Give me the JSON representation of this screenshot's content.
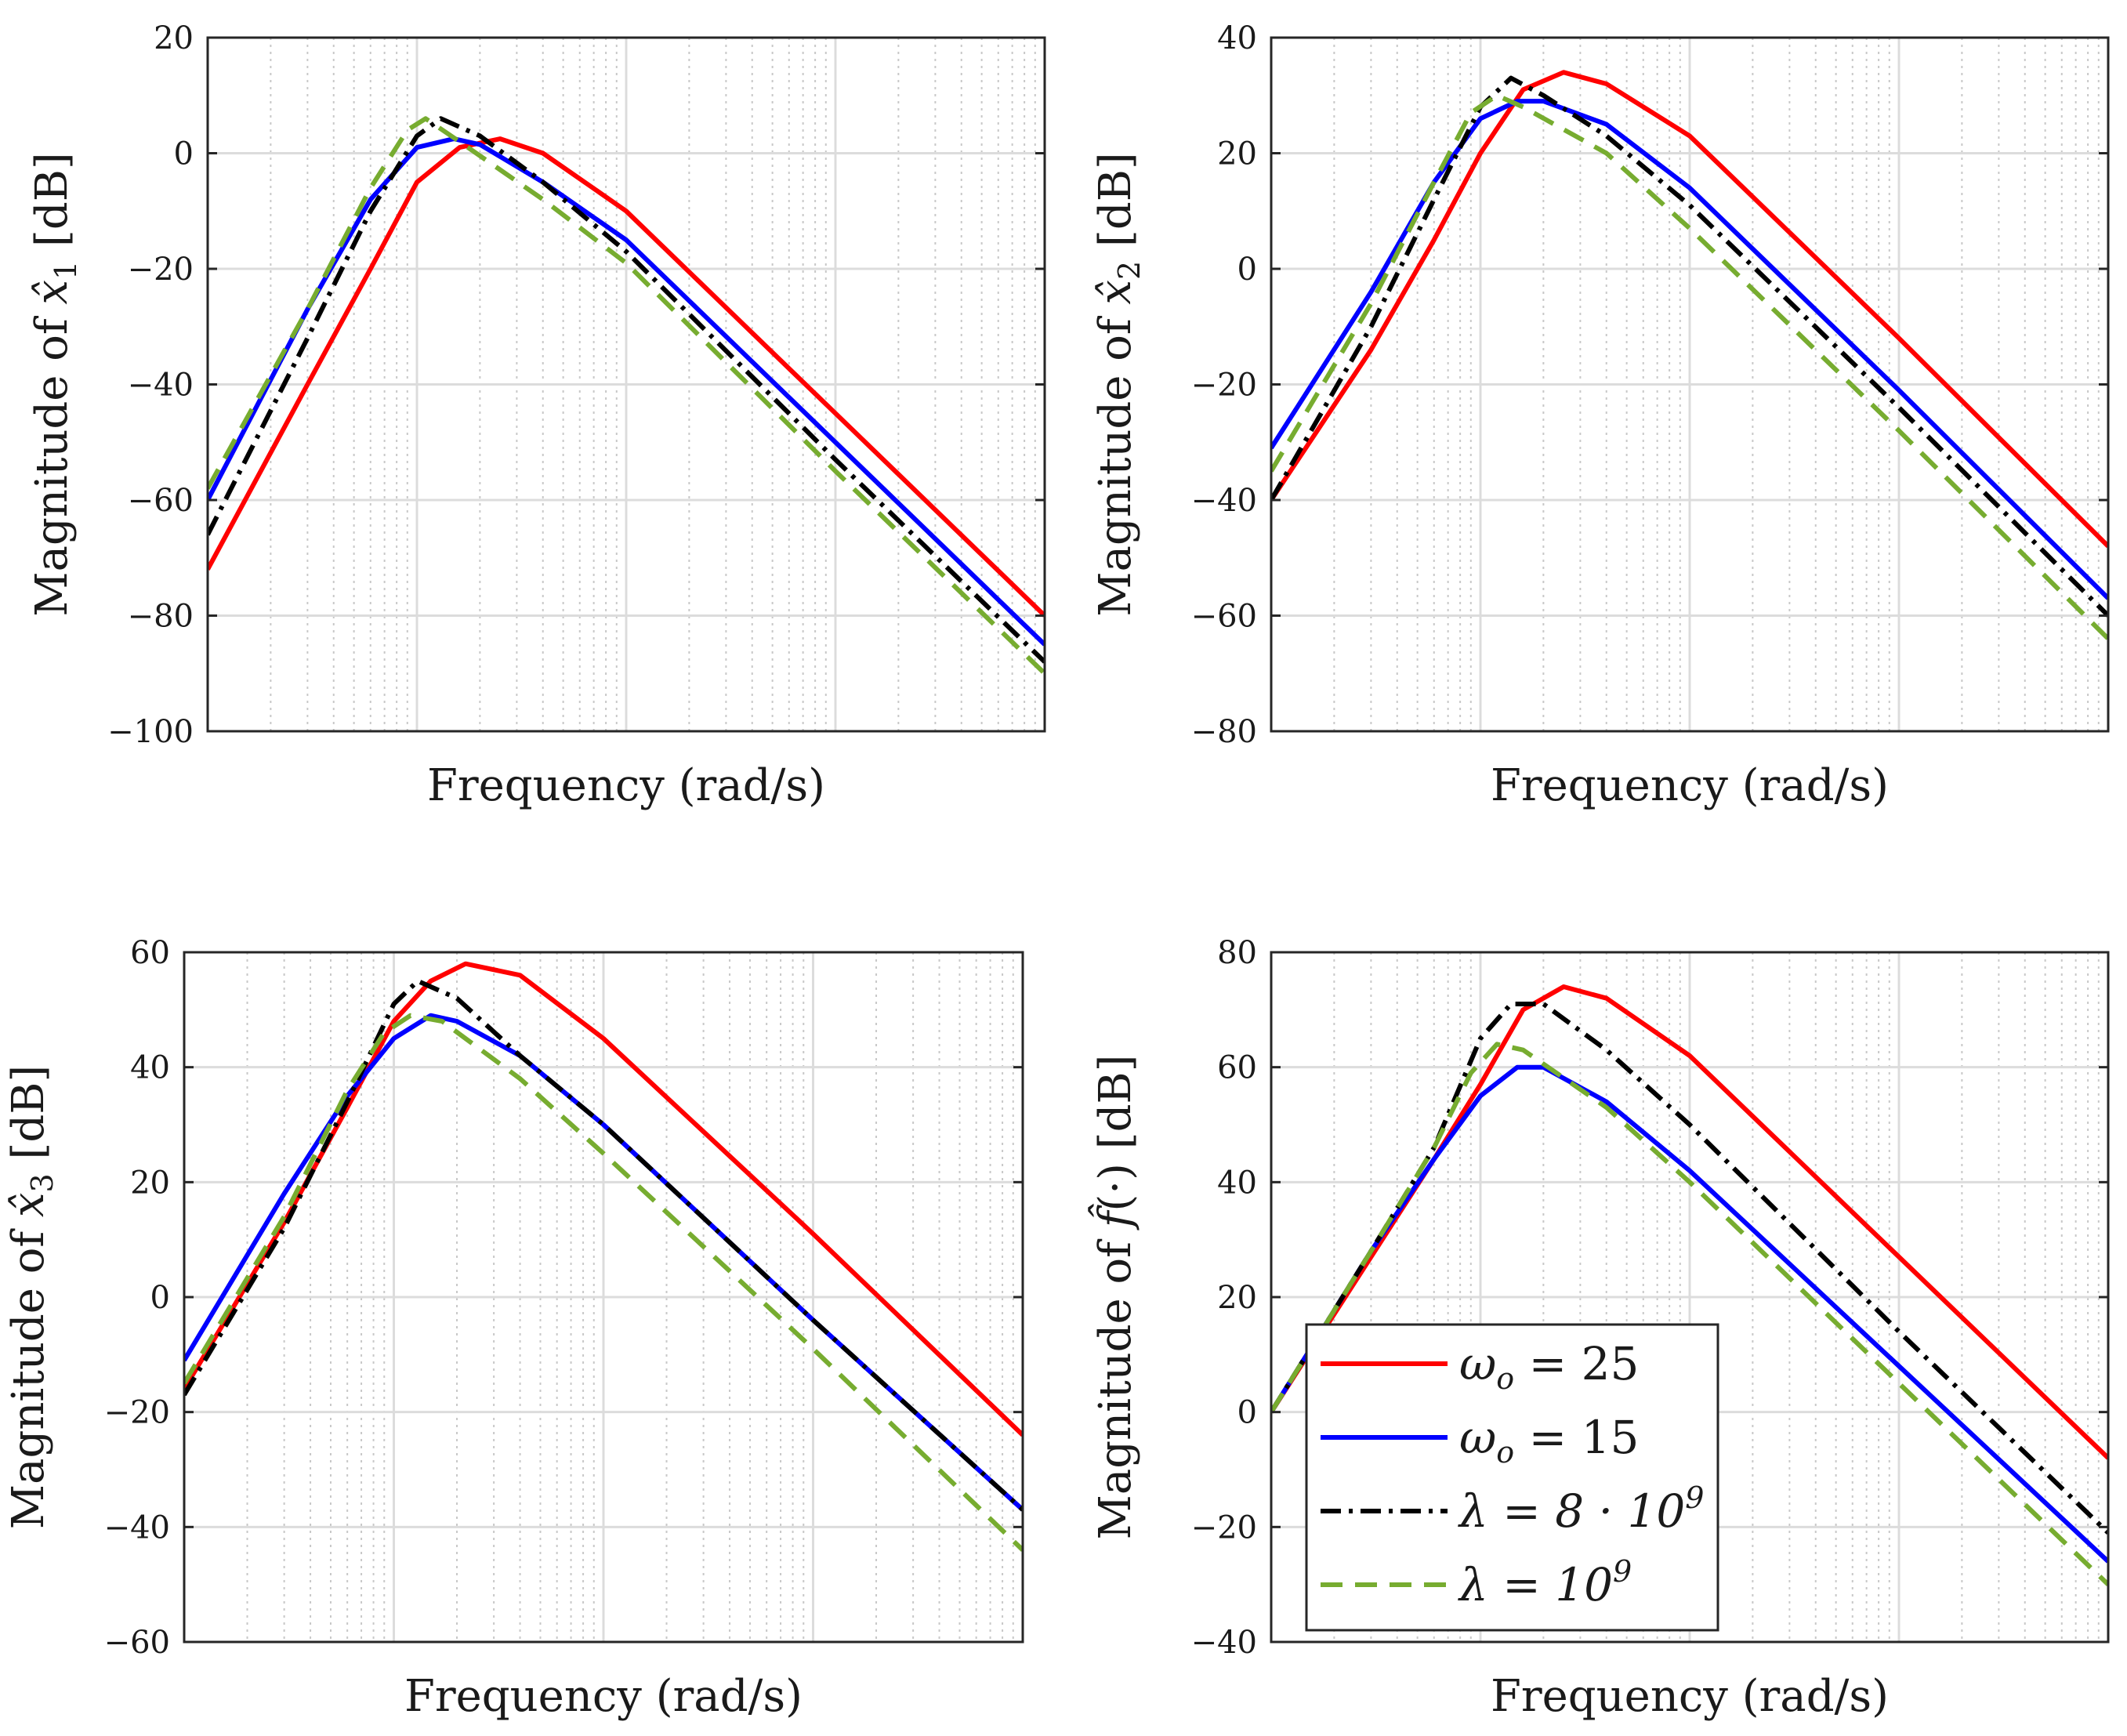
{
  "chart_data": [
    {
      "type": "line",
      "xlabel": "Frequency (rad/s)",
      "ylabel": "Magnitude of x̂₁ [dB]",
      "xscale": "log",
      "xlim": [
        0.1,
        1000
      ],
      "ylim": [
        -100,
        20
      ],
      "yticks": [
        20,
        0,
        -20,
        -40,
        -60,
        -80,
        -100
      ],
      "grid": true,
      "series": [
        {
          "name": "ω_o = 25",
          "x": [
            0.1,
            0.3,
            0.6,
            1,
            1.6,
            2.5,
            4,
            10,
            100,
            1000
          ],
          "values": [
            -72,
            -40,
            -20,
            -5,
            1,
            2.5,
            0,
            -10,
            -45,
            -80
          ]
        },
        {
          "name": "ω_o = 15",
          "x": [
            0.1,
            0.3,
            0.6,
            1,
            1.5,
            2,
            4,
            10,
            100,
            1000
          ],
          "values": [
            -60,
            -27,
            -8,
            1,
            2.5,
            1.5,
            -5,
            -15,
            -50,
            -85
          ]
        },
        {
          "name": "λ = 8·10⁹",
          "x": [
            0.1,
            0.3,
            0.6,
            1,
            1.3,
            2,
            4,
            10,
            100,
            1000
          ],
          "values": [
            -66,
            -32,
            -10,
            3,
            6,
            3,
            -5,
            -17,
            -53,
            -88
          ]
        },
        {
          "name": "λ = 10⁹",
          "x": [
            0.1,
            0.3,
            0.6,
            0.9,
            1.1,
            1.6,
            4,
            10,
            100,
            1000
          ],
          "values": [
            -58,
            -27,
            -6,
            4,
            6,
            2,
            -8,
            -19,
            -55,
            -90
          ]
        }
      ]
    },
    {
      "type": "line",
      "xlabel": "Frequency (rad/s)",
      "ylabel": "Magnitude of x̂₂ [dB]",
      "xscale": "log",
      "xlim": [
        0.1,
        1000
      ],
      "ylim": [
        -80,
        40
      ],
      "yticks": [
        40,
        20,
        0,
        -20,
        -40,
        -60,
        -80
      ],
      "grid": true,
      "series": [
        {
          "name": "ω_o = 25",
          "x": [
            0.1,
            0.3,
            0.6,
            1,
            1.6,
            2.5,
            4,
            10,
            100,
            1000
          ],
          "values": [
            -40,
            -14,
            5,
            20,
            31,
            34,
            32,
            23,
            -12,
            -48
          ]
        },
        {
          "name": "ω_o = 15",
          "x": [
            0.1,
            0.3,
            0.6,
            1,
            1.5,
            2,
            4,
            10,
            100,
            1000
          ],
          "values": [
            -31,
            -4,
            15,
            26,
            29,
            29,
            25,
            14,
            -21,
            -57
          ]
        },
        {
          "name": "λ = 8·10⁹",
          "x": [
            0.1,
            0.3,
            0.6,
            1,
            1.4,
            2,
            4,
            10,
            100,
            1000
          ],
          "values": [
            -40,
            -10,
            12,
            28,
            33,
            30,
            23,
            11,
            -24,
            -60
          ]
        },
        {
          "name": "λ = 10⁹",
          "x": [
            0.1,
            0.3,
            0.6,
            0.9,
            1.2,
            1.6,
            4,
            10,
            100,
            1000
          ],
          "values": [
            -35,
            -6,
            15,
            27,
            30,
            28,
            20,
            7,
            -28,
            -64
          ]
        }
      ]
    },
    {
      "type": "line",
      "xlabel": "Frequency (rad/s)",
      "ylabel": "Magnitude of x̂₃ [dB]",
      "xscale": "log",
      "xlim": [
        0.1,
        1000
      ],
      "ylim": [
        -60,
        60
      ],
      "yticks": [
        60,
        40,
        20,
        0,
        -20,
        -40,
        -60
      ],
      "grid": true,
      "series": [
        {
          "name": "ω_o = 25",
          "x": [
            0.1,
            0.3,
            0.6,
            1,
            1.5,
            2.2,
            4,
            10,
            100,
            1000
          ],
          "values": [
            -16,
            13,
            33,
            48,
            55,
            58,
            56,
            45,
            11,
            -24
          ]
        },
        {
          "name": "ω_o = 15",
          "x": [
            0.1,
            0.3,
            0.6,
            1,
            1.5,
            2,
            4,
            10,
            100,
            1000
          ],
          "values": [
            -11,
            18,
            35,
            45,
            49,
            48,
            42,
            30,
            -4,
            -37
          ]
        },
        {
          "name": "λ = 8·10⁹",
          "x": [
            0.1,
            0.3,
            0.6,
            1,
            1.3,
            2,
            4,
            10,
            100,
            1000
          ],
          "values": [
            -17,
            12,
            34,
            51,
            55,
            52,
            42,
            30,
            -4,
            -37
          ]
        },
        {
          "name": "λ = 10⁹",
          "x": [
            0.1,
            0.3,
            0.6,
            0.9,
            1.2,
            1.7,
            4,
            10,
            100,
            1000
          ],
          "values": [
            -15,
            14,
            36,
            46,
            49,
            48,
            38,
            25,
            -9,
            -44
          ]
        }
      ]
    },
    {
      "type": "line",
      "xlabel": "Frequency (rad/s)",
      "ylabel": "Magnitude of f̂(·) [dB]",
      "xscale": "log",
      "xlim": [
        0.1,
        1000
      ],
      "ylim": [
        -40,
        80
      ],
      "yticks": [
        80,
        60,
        40,
        20,
        0,
        -20,
        -40
      ],
      "grid": true,
      "legend": {
        "position": "bottom-left",
        "entries": [
          "ω_o = 25",
          "ω_o = 15",
          "λ = 8·10⁹",
          "λ = 10⁹"
        ]
      },
      "series": [
        {
          "name": "ω_o = 25",
          "x": [
            0.1,
            0.3,
            0.6,
            1,
            1.6,
            2.5,
            4,
            10,
            100,
            1000
          ],
          "values": [
            0,
            27,
            44,
            57,
            70,
            74,
            72,
            62,
            27,
            -8
          ]
        },
        {
          "name": "ω_o = 15",
          "x": [
            0.1,
            0.3,
            0.6,
            1,
            1.5,
            2,
            4,
            10,
            100,
            1000
          ],
          "values": [
            0,
            28,
            44,
            55,
            60,
            60,
            54,
            42,
            8,
            -26
          ]
        },
        {
          "name": "λ = 8·10⁹",
          "x": [
            0.1,
            0.3,
            0.6,
            1,
            1.4,
            2,
            4,
            10,
            100,
            1000
          ],
          "values": [
            0,
            28,
            46,
            65,
            71,
            71,
            63,
            50,
            14,
            -21
          ]
        },
        {
          "name": "λ = 10⁹",
          "x": [
            0.1,
            0.3,
            0.6,
            0.9,
            1.2,
            1.6,
            4,
            10,
            100,
            1000
          ],
          "values": [
            0,
            28,
            46,
            59,
            64,
            63,
            53,
            40,
            5,
            -30
          ]
        }
      ]
    }
  ],
  "legend": {
    "items": [
      {
        "symbol": "ω",
        "sub": "o",
        "rest": " = 25"
      },
      {
        "symbol": "ω",
        "sub": "o",
        "rest": " = 15"
      },
      {
        "symbol": "λ = 8 · 10",
        "sup": "9",
        "rest": ""
      },
      {
        "symbol": "λ = 10",
        "sup": "9",
        "rest": ""
      }
    ]
  },
  "ylabel_parts": [
    {
      "pre": "Magnitude of ",
      "math": "x̂",
      "sub": "1",
      "post": " [dB]"
    },
    {
      "pre": "Magnitude of ",
      "math": "x̂",
      "sub": "2",
      "post": " [dB]"
    },
    {
      "pre": "Magnitude of ",
      "math": "x̂",
      "sub": "3",
      "post": " [dB]"
    },
    {
      "pre": "Magnitude of ",
      "math": "f̂",
      "sub": "",
      "post": "(·) [dB]"
    }
  ],
  "styles": [
    {
      "color": "#ff0000",
      "dash": "",
      "label": "ω_o = 25"
    },
    {
      "color": "#0000ff",
      "dash": "",
      "label": "ω_o = 15"
    },
    {
      "color": "#000000",
      "dash": "dashdot",
      "label": "λ = 8·10⁹"
    },
    {
      "color": "#77ac30",
      "dash": "dash",
      "label": "λ = 10⁹"
    }
  ]
}
